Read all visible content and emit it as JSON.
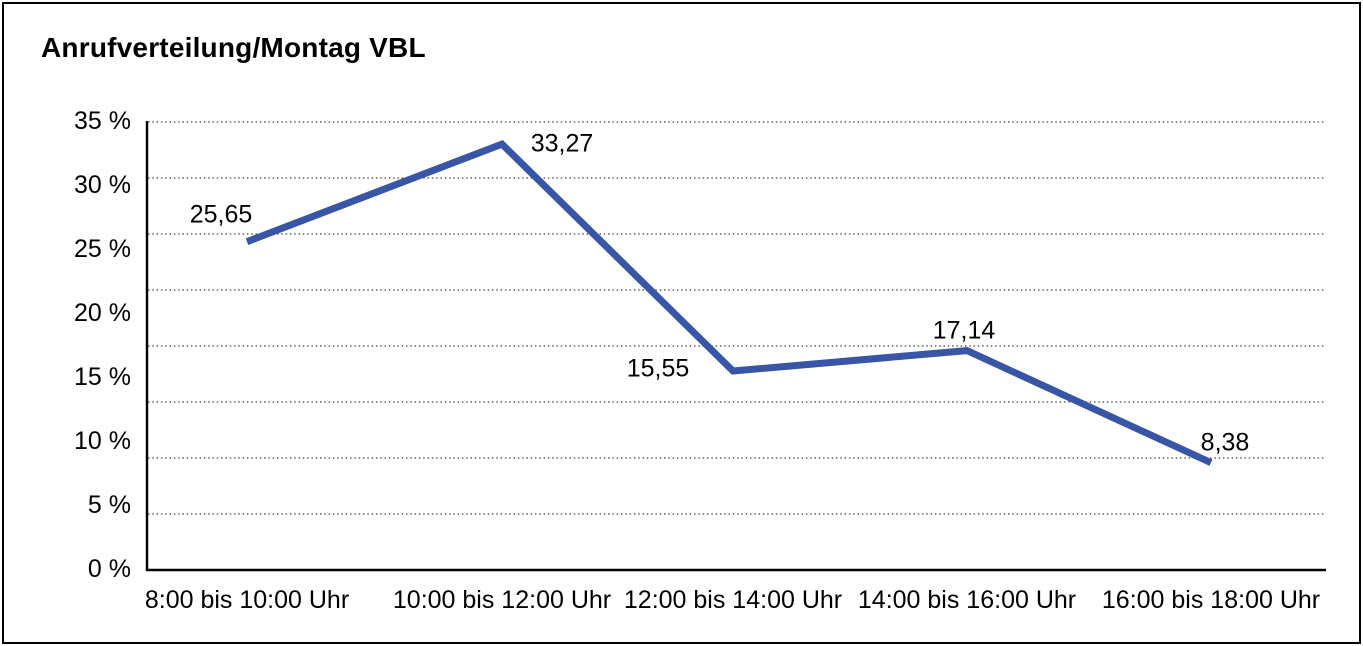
{
  "title": "Anrufverteilung/Montag VBL",
  "colors": {
    "line": "#3856A5",
    "grid": "#3f3f3f",
    "axis": "#000000",
    "text": "#000000",
    "background": "#ffffff",
    "border": "#000000"
  },
  "chart_data": {
    "type": "line",
    "title": "Anrufverteilung/Montag VBL",
    "categories": [
      "8:00 bis 10:00 Uhr",
      "10:00 bis 12:00 Uhr",
      "12:00 bis 14:00 Uhr",
      "14:00 bis 16:00 Uhr",
      "16:00 bis 18:00 Uhr"
    ],
    "values": [
      25.65,
      33.27,
      15.55,
      17.14,
      8.38
    ],
    "data_labels": [
      "25,65",
      "33,27",
      "15,55",
      "17,14",
      "8,38"
    ],
    "y_tick_labels": [
      "35 %",
      "30 %",
      "25 %",
      "20 %",
      "15 %",
      "10 %",
      "5 %",
      "0 %"
    ],
    "xlabel": "",
    "ylabel": "",
    "ylim": [
      0,
      35
    ],
    "grid": "horizontal-dotted",
    "gridline_count": 9,
    "legend": "none",
    "decimal_separator": ","
  }
}
